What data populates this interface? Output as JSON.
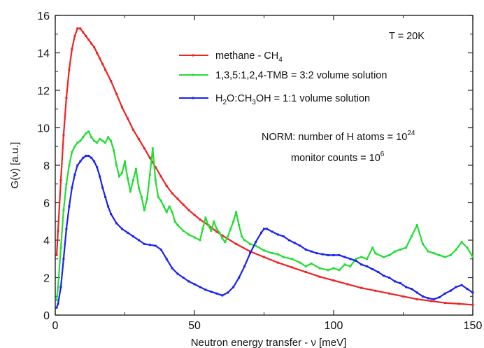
{
  "chart_data": {
    "type": "line",
    "xlabel": "Neutron energy transfer - ν  [meV]",
    "ylabel": "G(ν)  [a.u.]",
    "xlim": [
      0,
      150
    ],
    "ylim": [
      0,
      16
    ],
    "xticks": [
      0,
      50,
      100,
      150
    ],
    "yticks": [
      0,
      2,
      4,
      6,
      8,
      10,
      12,
      14,
      16
    ],
    "grid": false,
    "legend_position": "top-right",
    "annotations": {
      "temperature": "T = 20K",
      "norm_line1": "NORM: number of H atoms = 10",
      "norm_line1_exp": "24",
      "norm_line2": "monitor counts = 10",
      "norm_line2_exp": "6"
    },
    "series": [
      {
        "name": "methane - CH4",
        "legend_parts": [
          "methane - CH",
          "4"
        ],
        "color": "#ee2222",
        "points": [
          [
            0.5,
            3.2
          ],
          [
            1,
            4.5
          ],
          [
            2,
            7.2
          ],
          [
            3,
            9.6
          ],
          [
            4,
            11.6
          ],
          [
            5,
            13.1
          ],
          [
            6,
            14.2
          ],
          [
            7,
            14.9
          ],
          [
            8,
            15.3
          ],
          [
            9,
            15.3
          ],
          [
            10,
            15.1
          ],
          [
            11,
            14.9
          ],
          [
            12,
            14.7
          ],
          [
            13,
            14.5
          ],
          [
            14,
            14.3
          ],
          [
            15,
            14.0
          ],
          [
            16,
            13.7
          ],
          [
            17,
            13.4
          ],
          [
            18,
            13.1
          ],
          [
            20,
            12.5
          ],
          [
            22,
            11.8
          ],
          [
            24,
            11.1
          ],
          [
            26,
            10.5
          ],
          [
            28,
            9.9
          ],
          [
            30,
            9.4
          ],
          [
            32,
            8.9
          ],
          [
            34,
            8.4
          ],
          [
            36,
            7.9
          ],
          [
            38,
            7.4
          ],
          [
            40,
            6.9
          ],
          [
            42,
            6.5
          ],
          [
            44,
            6.2
          ],
          [
            46,
            5.9
          ],
          [
            48,
            5.6
          ],
          [
            50,
            5.35
          ],
          [
            52,
            5.1
          ],
          [
            55,
            4.8
          ],
          [
            58,
            4.45
          ],
          [
            60,
            4.25
          ],
          [
            65,
            3.8
          ],
          [
            70,
            3.4
          ],
          [
            75,
            3.1
          ],
          [
            80,
            2.8
          ],
          [
            85,
            2.55
          ],
          [
            90,
            2.3
          ],
          [
            95,
            2.05
          ],
          [
            100,
            1.85
          ],
          [
            105,
            1.65
          ],
          [
            110,
            1.45
          ],
          [
            115,
            1.3
          ],
          [
            120,
            1.15
          ],
          [
            125,
            1.0
          ],
          [
            130,
            0.85
          ],
          [
            135,
            0.75
          ],
          [
            140,
            0.65
          ],
          [
            145,
            0.6
          ],
          [
            150,
            0.55
          ]
        ]
      },
      {
        "name": "1,3,5:1,2,4-TMB = 3:2 volume solution",
        "legend_parts": [
          "1,3,5:1,2,4-TMB = 3:2 volume solution"
        ],
        "color": "#22dd33",
        "points": [
          [
            0.5,
            0.8
          ],
          [
            1,
            1.5
          ],
          [
            2,
            3.6
          ],
          [
            3,
            5.6
          ],
          [
            4,
            7.0
          ],
          [
            5,
            8.0
          ],
          [
            6,
            8.7
          ],
          [
            7,
            9.0
          ],
          [
            8,
            9.2
          ],
          [
            9,
            9.3
          ],
          [
            10,
            9.5
          ],
          [
            11,
            9.7
          ],
          [
            12,
            9.8
          ],
          [
            13,
            9.5
          ],
          [
            14,
            9.3
          ],
          [
            15,
            9.2
          ],
          [
            16,
            9.4
          ],
          [
            17,
            9.3
          ],
          [
            18,
            9.2
          ],
          [
            19,
            9.5
          ],
          [
            20,
            9.3
          ],
          [
            21,
            8.8
          ],
          [
            22,
            8.0
          ],
          [
            23,
            7.4
          ],
          [
            24,
            7.6
          ],
          [
            25,
            8.2
          ],
          [
            26,
            7.3
          ],
          [
            27,
            6.6
          ],
          [
            28,
            7.2
          ],
          [
            29,
            7.8
          ],
          [
            30,
            6.8
          ],
          [
            31,
            6.3
          ],
          [
            32,
            5.6
          ],
          [
            33,
            6.2
          ],
          [
            34,
            7.5
          ],
          [
            35,
            8.9
          ],
          [
            36,
            7.2
          ],
          [
            37,
            6.3
          ],
          [
            38,
            6.1
          ],
          [
            39,
            5.8
          ],
          [
            40,
            5.5
          ],
          [
            41,
            5.8
          ],
          [
            42,
            5.5
          ],
          [
            43,
            5.0
          ],
          [
            44,
            4.8
          ],
          [
            46,
            4.5
          ],
          [
            48,
            4.3
          ],
          [
            50,
            4.15
          ],
          [
            52,
            4.0
          ],
          [
            53,
            4.6
          ],
          [
            54,
            5.2
          ],
          [
            55,
            4.8
          ],
          [
            56,
            4.5
          ],
          [
            57,
            5.0
          ],
          [
            58,
            4.6
          ],
          [
            59,
            4.4
          ],
          [
            60,
            4.1
          ],
          [
            61,
            3.9
          ],
          [
            62,
            4.2
          ],
          [
            63,
            4.6
          ],
          [
            64,
            5.0
          ],
          [
            65,
            5.5
          ],
          [
            66,
            4.8
          ],
          [
            67,
            4.2
          ],
          [
            68,
            4.0
          ],
          [
            70,
            3.8
          ],
          [
            72,
            3.7
          ],
          [
            75,
            3.45
          ],
          [
            78,
            3.3
          ],
          [
            80,
            3.25
          ],
          [
            82,
            3.1
          ],
          [
            85,
            3.0
          ],
          [
            88,
            2.8
          ],
          [
            90,
            2.6
          ],
          [
            92,
            2.75
          ],
          [
            95,
            2.5
          ],
          [
            98,
            2.4
          ],
          [
            100,
            2.5
          ],
          [
            102,
            2.4
          ],
          [
            104,
            2.7
          ],
          [
            106,
            2.6
          ],
          [
            108,
            3.0
          ],
          [
            110,
            3.1
          ],
          [
            112,
            3.0
          ],
          [
            114,
            3.6
          ],
          [
            115,
            3.3
          ],
          [
            118,
            3.1
          ],
          [
            120,
            3.2
          ],
          [
            122,
            3.4
          ],
          [
            124,
            3.5
          ],
          [
            126,
            3.6
          ],
          [
            128,
            4.2
          ],
          [
            130,
            4.8
          ],
          [
            132,
            3.8
          ],
          [
            134,
            3.4
          ],
          [
            136,
            3.3
          ],
          [
            138,
            3.2
          ],
          [
            140,
            3.1
          ],
          [
            142,
            3.2
          ],
          [
            144,
            3.5
          ],
          [
            146,
            3.9
          ],
          [
            148,
            3.6
          ],
          [
            150,
            3.1
          ]
        ]
      },
      {
        "name": "H2O:CH3OH = 1:1 volume solution",
        "legend_parts": [
          "H",
          "2",
          "O:CH",
          "3",
          "OH = 1:1 volume solution"
        ],
        "color": "#1a22ee",
        "points": [
          [
            0.5,
            0.4
          ],
          [
            1,
            0.6
          ],
          [
            2,
            1.5
          ],
          [
            3,
            3.0
          ],
          [
            4,
            4.6
          ],
          [
            5,
            5.8
          ],
          [
            6,
            6.8
          ],
          [
            7,
            7.5
          ],
          [
            8,
            8.0
          ],
          [
            9,
            8.2
          ],
          [
            10,
            8.4
          ],
          [
            11,
            8.5
          ],
          [
            12,
            8.5
          ],
          [
            13,
            8.4
          ],
          [
            14,
            8.2
          ],
          [
            15,
            7.9
          ],
          [
            16,
            7.4
          ],
          [
            17,
            6.8
          ],
          [
            18,
            6.3
          ],
          [
            19,
            5.8
          ],
          [
            20,
            5.4
          ],
          [
            22,
            4.9
          ],
          [
            24,
            4.6
          ],
          [
            26,
            4.4
          ],
          [
            28,
            4.2
          ],
          [
            30,
            4.0
          ],
          [
            32,
            3.8
          ],
          [
            34,
            3.75
          ],
          [
            36,
            3.7
          ],
          [
            38,
            3.5
          ],
          [
            40,
            3.0
          ],
          [
            42,
            2.5
          ],
          [
            44,
            2.2
          ],
          [
            46,
            2.0
          ],
          [
            48,
            1.8
          ],
          [
            50,
            1.65
          ],
          [
            52,
            1.5
          ],
          [
            54,
            1.35
          ],
          [
            56,
            1.25
          ],
          [
            58,
            1.15
          ],
          [
            60,
            1.05
          ],
          [
            62,
            1.2
          ],
          [
            64,
            1.5
          ],
          [
            66,
            2.0
          ],
          [
            68,
            2.6
          ],
          [
            70,
            3.3
          ],
          [
            72,
            3.9
          ],
          [
            74,
            4.4
          ],
          [
            75,
            4.6
          ],
          [
            76,
            4.6
          ],
          [
            78,
            4.45
          ],
          [
            80,
            4.3
          ],
          [
            82,
            4.2
          ],
          [
            84,
            4.0
          ],
          [
            86,
            3.85
          ],
          [
            88,
            3.7
          ],
          [
            90,
            3.5
          ],
          [
            92,
            3.4
          ],
          [
            94,
            3.3
          ],
          [
            96,
            3.25
          ],
          [
            98,
            3.2
          ],
          [
            100,
            3.2
          ],
          [
            102,
            3.2
          ],
          [
            104,
            3.1
          ],
          [
            106,
            3.0
          ],
          [
            108,
            2.9
          ],
          [
            110,
            2.7
          ],
          [
            112,
            2.6
          ],
          [
            114,
            2.45
          ],
          [
            116,
            2.3
          ],
          [
            118,
            2.1
          ],
          [
            120,
            2.0
          ],
          [
            122,
            1.8
          ],
          [
            124,
            1.7
          ],
          [
            126,
            1.5
          ],
          [
            128,
            1.4
          ],
          [
            130,
            1.2
          ],
          [
            132,
            1.0
          ],
          [
            134,
            0.9
          ],
          [
            136,
            0.85
          ],
          [
            138,
            0.95
          ],
          [
            140,
            1.15
          ],
          [
            142,
            1.3
          ],
          [
            144,
            1.5
          ],
          [
            146,
            1.6
          ],
          [
            148,
            1.4
          ],
          [
            150,
            1.2
          ]
        ]
      }
    ]
  }
}
